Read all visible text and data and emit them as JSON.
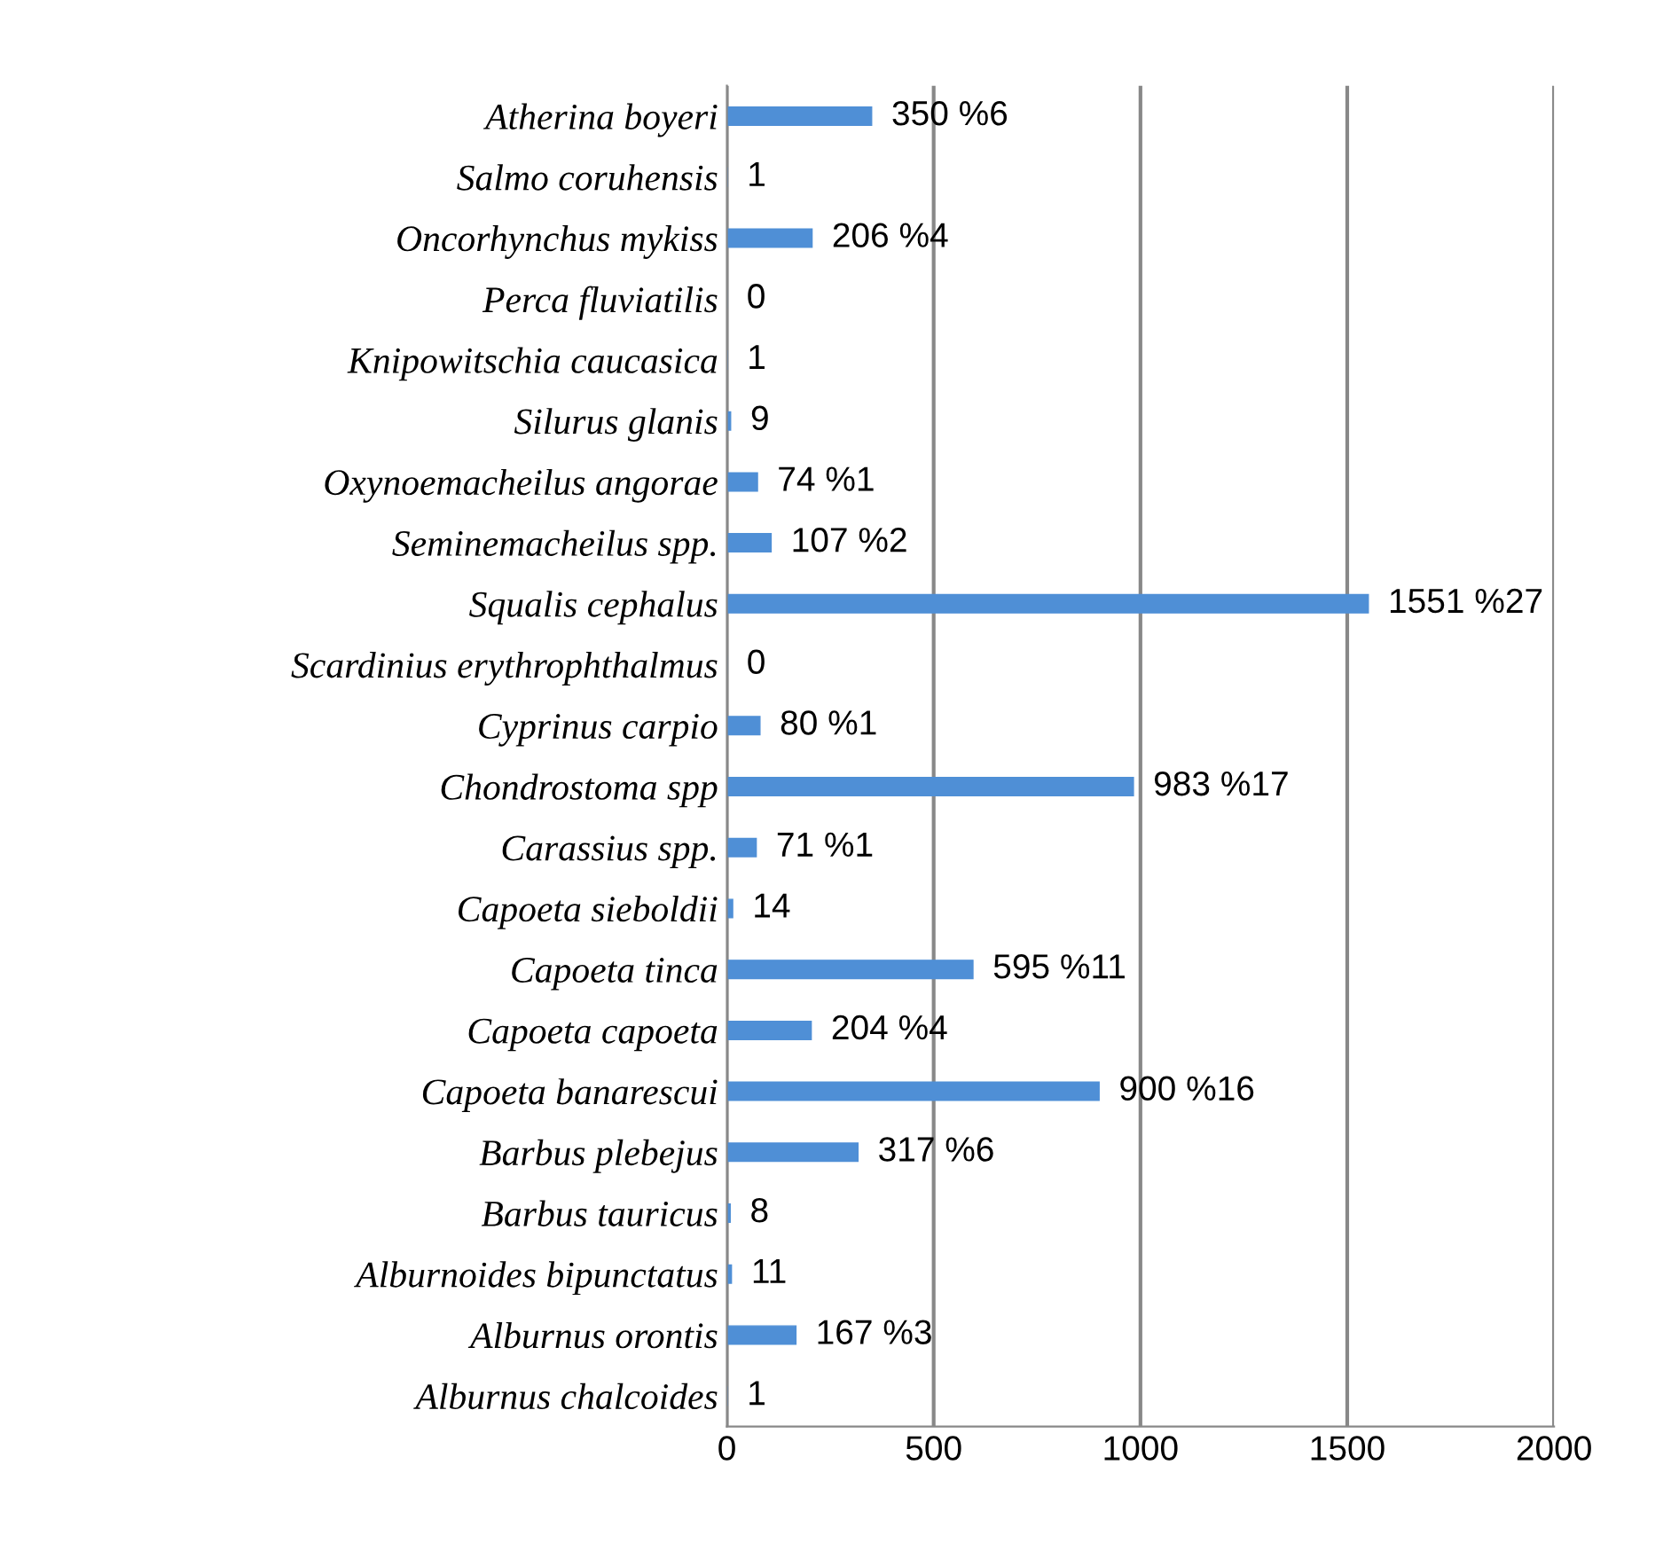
{
  "chart_data": {
    "type": "bar",
    "orientation": "horizontal",
    "categories": [
      "Atherina boyeri",
      "Salmo coruhensis",
      "Oncorhynchus mykiss",
      "Perca fluviatilis",
      "Knipowitschia caucasica",
      "Silurus glanis",
      "Oxynoemacheilus angorae",
      "Seminemacheilus spp.",
      "Squalis cephalus",
      "Scardinius erythrophthalmus",
      "Cyprinus carpio",
      "Chondrostoma spp",
      "Carassius spp.",
      "Capoeta sieboldii",
      "Capoeta tinca",
      "Capoeta capoeta",
      "Capoeta banarescui",
      "Barbus plebejus",
      "Barbus tauricus",
      "Alburnoides bipunctatus",
      "Alburnus orontis",
      "Alburnus chalcoides"
    ],
    "values": [
      350,
      1,
      206,
      0,
      1,
      9,
      74,
      107,
      1551,
      0,
      80,
      983,
      71,
      14,
      595,
      204,
      900,
      317,
      8,
      11,
      167,
      1
    ],
    "value_labels": [
      "350 %6",
      "1",
      "206 %4",
      "0",
      "1",
      "9",
      "74 %1",
      "107 %2",
      "1551 %27",
      "0",
      "80 %1",
      "983 %17",
      "71 %1",
      "14",
      "595 %11",
      "204 %4",
      "900 %16",
      "317 %6",
      "8",
      "11",
      "167 %3",
      "1"
    ],
    "color": "#4f8fd6",
    "xlim": [
      0,
      2000
    ],
    "xticks": [
      0,
      500,
      1000,
      1500,
      2000
    ],
    "grid": "x",
    "legend": false
  }
}
